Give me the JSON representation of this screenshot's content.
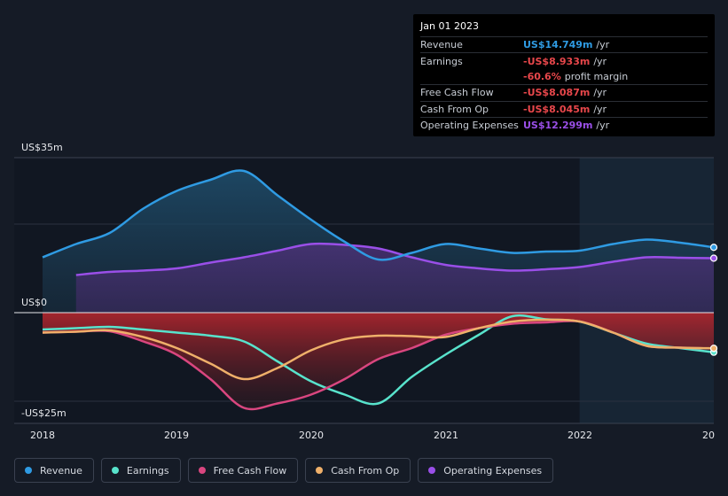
{
  "tooltip": {
    "date": "Jan 01 2023",
    "rows": [
      {
        "label": "Revenue",
        "value": "US$14.749m",
        "unit": "/yr",
        "color": "#2f9be3"
      },
      {
        "label": "Earnings",
        "value": "-US$8.933m",
        "unit": "/yr",
        "color": "#e8474b"
      },
      {
        "label": "",
        "value": "-60.6%",
        "unit": "profit margin",
        "color": "#e8474b"
      },
      {
        "label": "Free Cash Flow",
        "value": "-US$8.087m",
        "unit": "/yr",
        "color": "#e8474b"
      },
      {
        "label": "Cash From Op",
        "value": "-US$8.045m",
        "unit": "/yr",
        "color": "#e8474b"
      },
      {
        "label": "Operating Expenses",
        "value": "US$12.299m",
        "unit": "/yr",
        "color": "#9a4fe8"
      }
    ]
  },
  "chart_data": {
    "type": "area",
    "y_axis_labels": [
      "US$35m",
      "US$0",
      "-US$25m"
    ],
    "x_tick_labels": [
      "2018",
      "2019",
      "2020",
      "2021",
      "2022",
      "20"
    ],
    "ylim": [
      -25,
      35
    ],
    "xlim": [
      2018.0,
      2023.0
    ],
    "highlight_start": 2022.0,
    "series": [
      {
        "name": "Revenue",
        "color": "#2f9be3",
        "x": [
          2018.0,
          2018.25,
          2018.5,
          2018.75,
          2019.0,
          2019.25,
          2019.5,
          2019.75,
          2020.0,
          2020.25,
          2020.5,
          2020.75,
          2021.0,
          2021.25,
          2021.5,
          2021.75,
          2022.0,
          2022.25,
          2022.5,
          2022.75,
          2023.0
        ],
        "y": [
          12.5,
          15.5,
          18.0,
          23.5,
          27.5,
          30.0,
          32.0,
          26.5,
          21.0,
          16.0,
          12.0,
          13.5,
          15.5,
          14.5,
          13.5,
          13.8,
          14.0,
          15.5,
          16.5,
          15.8,
          14.749
        ]
      },
      {
        "name": "Earnings",
        "color": "#58e3cc",
        "x": [
          2018.0,
          2018.25,
          2018.5,
          2018.75,
          2019.0,
          2019.25,
          2019.5,
          2019.75,
          2020.0,
          2020.25,
          2020.5,
          2020.75,
          2021.0,
          2021.25,
          2021.5,
          2021.75,
          2022.0,
          2022.25,
          2022.5,
          2022.75,
          2023.0
        ],
        "y": [
          -3.8,
          -3.5,
          -3.2,
          -3.8,
          -4.5,
          -5.2,
          -6.5,
          -11.0,
          -15.5,
          -18.5,
          -20.5,
          -14.5,
          -9.5,
          -5.0,
          -0.8,
          -1.5,
          -2.0,
          -4.5,
          -7.0,
          -8.0,
          -8.933
        ]
      },
      {
        "name": "Free Cash Flow",
        "color": "#d9467f",
        "x": [
          2018.0,
          2018.25,
          2018.5,
          2018.75,
          2019.0,
          2019.25,
          2019.5,
          2019.75,
          2020.0,
          2020.25,
          2020.5,
          2020.75,
          2021.0,
          2021.25,
          2021.5,
          2021.75,
          2022.0,
          2022.25,
          2022.5,
          2022.75,
          2023.0
        ],
        "y": [
          -4.5,
          -4.3,
          -4.2,
          -6.5,
          -9.5,
          -15.0,
          -21.5,
          -20.5,
          -18.5,
          -15.0,
          -10.5,
          -8.0,
          -5.0,
          -3.5,
          -2.5,
          -2.2,
          -2.0,
          -4.5,
          -7.5,
          -7.9,
          -8.087
        ]
      },
      {
        "name": "Cash From Op",
        "color": "#efb06a",
        "x": [
          2018.0,
          2018.25,
          2018.5,
          2018.75,
          2019.0,
          2019.25,
          2019.5,
          2019.75,
          2020.0,
          2020.25,
          2020.5,
          2020.75,
          2021.0,
          2021.25,
          2021.5,
          2021.75,
          2022.0,
          2022.25,
          2022.5,
          2022.75,
          2023.0
        ],
        "y": [
          -4.5,
          -4.3,
          -4.0,
          -5.5,
          -8.0,
          -11.5,
          -15.0,
          -12.5,
          -8.5,
          -6.0,
          -5.2,
          -5.3,
          -5.5,
          -3.5,
          -2.0,
          -1.6,
          -2.0,
          -4.5,
          -7.5,
          -7.9,
          -8.045
        ]
      },
      {
        "name": "Operating Expenses",
        "color": "#9a4fe8",
        "x": [
          2018.25,
          2018.5,
          2018.75,
          2019.0,
          2019.25,
          2019.5,
          2019.75,
          2020.0,
          2020.25,
          2020.5,
          2020.75,
          2021.0,
          2021.25,
          2021.5,
          2021.75,
          2022.0,
          2022.25,
          2022.5,
          2022.75,
          2023.0
        ],
        "y": [
          8.5,
          9.2,
          9.5,
          10.0,
          11.3,
          12.5,
          14.0,
          15.5,
          15.3,
          14.5,
          12.5,
          10.8,
          10.0,
          9.5,
          9.8,
          10.3,
          11.5,
          12.5,
          12.4,
          12.299
        ]
      }
    ]
  },
  "legend": [
    {
      "label": "Revenue",
      "color": "#2f9be3"
    },
    {
      "label": "Earnings",
      "color": "#58e3cc"
    },
    {
      "label": "Free Cash Flow",
      "color": "#d9467f"
    },
    {
      "label": "Cash From Op",
      "color": "#efb06a"
    },
    {
      "label": "Operating Expenses",
      "color": "#9a4fe8"
    }
  ]
}
